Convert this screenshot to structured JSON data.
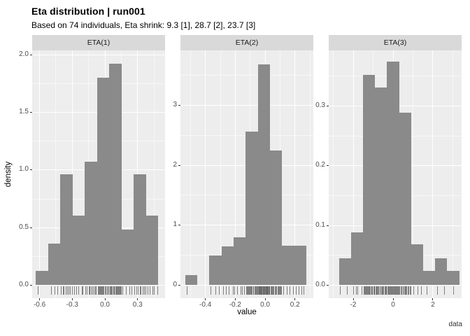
{
  "title": "Eta distribution | run001",
  "subtitle": "Based on 74 individuals, Eta shrink: 9.3 [1], 28.7 [2], 23.7 [3]",
  "caption": "data",
  "axes": {
    "x_title": "value",
    "y_title": "density"
  },
  "colors": {
    "bar_fill": "#8a8a8a",
    "panel_background": "#ededed",
    "strip_background": "#d9d9d9",
    "gridline": "#ffffff",
    "tick_mark": "#333333",
    "tick_label": "#4d4d4d",
    "rug": "#404040",
    "text": "#000000"
  },
  "chart_data": {
    "type": "histogram",
    "faceted": true,
    "n_individuals": 74,
    "legend": "none",
    "facets": [
      {
        "label": "ETA(1)",
        "bin_start": -0.635,
        "bin_width": 0.1126,
        "counts": [
          1,
          3,
          8,
          5,
          9,
          15,
          16,
          4,
          8,
          5
        ],
        "densities": [
          0.12,
          0.36,
          0.96,
          0.6,
          1.07,
          1.8,
          1.92,
          0.48,
          0.96,
          0.6
        ],
        "xlim": [
          -0.668,
          0.552
        ],
        "x_ticks": [
          -0.6,
          -0.3,
          0.0,
          0.3
        ],
        "x_tick_labels": [
          "-0.6",
          "-0.3",
          "0.0",
          "0.3"
        ],
        "x_minor": [
          -0.45,
          -0.15,
          0.15,
          0.45
        ],
        "y_ticks": [
          0,
          0.5,
          1.0,
          1.5,
          2.0
        ],
        "y_tick_labels": [
          "0.0",
          "0.5",
          "1.0",
          "1.5",
          "2.0"
        ],
        "y_minor": [
          0.25,
          0.75,
          1.25,
          1.75
        ],
        "y_max": 2.035
      },
      {
        "label": "ETA(2)",
        "bin_start": -0.535,
        "bin_width": 0.081,
        "counts": [
          1,
          0,
          3,
          4,
          5,
          16,
          23,
          14,
          4,
          4
        ],
        "densities": [
          0.16,
          0,
          0.49,
          0.64,
          0.79,
          2.56,
          3.68,
          2.24,
          0.65,
          0.65
        ],
        "xlim": [
          -0.567,
          0.323
        ],
        "x_ticks": [
          -0.4,
          -0.2,
          0.0,
          0.2
        ],
        "x_tick_labels": [
          "-0.4",
          "-0.2",
          "0.0",
          "0.2"
        ],
        "x_minor": [
          -0.5,
          -0.3,
          -0.1,
          0.1,
          0.3
        ],
        "y_ticks": [
          0,
          1,
          2,
          3
        ],
        "y_tick_labels": [
          "0",
          "1",
          "2",
          "3"
        ],
        "y_minor": [
          0.5,
          1.5,
          2.5,
          3.5
        ],
        "y_max": 3.91
      },
      {
        "label": "ETA(3)",
        "bin_start": -2.72,
        "bin_width": 0.604,
        "counts": [
          2,
          4,
          16,
          15,
          17,
          13,
          3,
          1,
          2,
          1
        ],
        "densities": [
          0.045,
          0.088,
          0.352,
          0.331,
          0.374,
          0.288,
          0.068,
          0.023,
          0.045,
          0.023
        ],
        "xlim": [
          -3.23,
          3.44
        ],
        "x_ticks": [
          -2,
          0,
          2
        ],
        "x_tick_labels": [
          "-2",
          "0",
          "2"
        ],
        "x_minor": [
          -3,
          -1,
          1,
          3
        ],
        "y_ticks": [
          0,
          0.1,
          0.2,
          0.3
        ],
        "y_tick_labels": [
          "0.0",
          "0.1",
          "0.2",
          "0.3"
        ],
        "y_minor": [
          0.05,
          0.15,
          0.25,
          0.35
        ],
        "y_max": 0.3927
      }
    ]
  }
}
